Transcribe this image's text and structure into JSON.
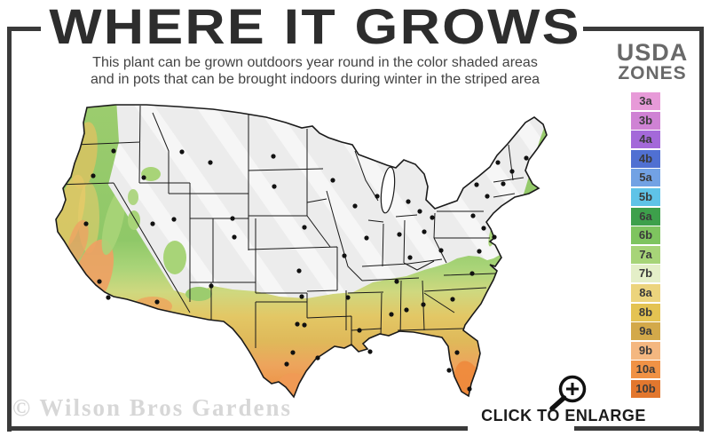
{
  "header": {
    "title": "WHERE IT GROWS",
    "subtitle_line1": "This plant can be grown outdoors year round in the color shaded areas",
    "subtitle_line2": "and in pots that can be brought indoors during winter in the striped area"
  },
  "legend": {
    "title_line1": "USDA",
    "title_line2": "ZONES",
    "zones": [
      {
        "label": "3a",
        "color": "#e79ad8"
      },
      {
        "label": "3b",
        "color": "#cf82d4"
      },
      {
        "label": "4a",
        "color": "#a469d9"
      },
      {
        "label": "4b",
        "color": "#5070d2"
      },
      {
        "label": "5a",
        "color": "#72a2e4"
      },
      {
        "label": "5b",
        "color": "#5fc3e7"
      },
      {
        "label": "6a",
        "color": "#3da04b"
      },
      {
        "label": "6b",
        "color": "#7ec45f"
      },
      {
        "label": "7a",
        "color": "#a7d478"
      },
      {
        "label": "7b",
        "color": "#e4efc8"
      },
      {
        "label": "8a",
        "color": "#ecd47d"
      },
      {
        "label": "8b",
        "color": "#e4c352"
      },
      {
        "label": "9a",
        "color": "#d3a94a"
      },
      {
        "label": "9b",
        "color": "#f4b780"
      },
      {
        "label": "10a",
        "color": "#f09245"
      },
      {
        "label": "10b",
        "color": "#e2772e"
      }
    ]
  },
  "map": {
    "striped_area_fill": "#ececec",
    "stripe_color": "#ffffff",
    "outline_color": "#1a1a1a",
    "warm_zone_colors": [
      "#9ccc6e",
      "#e3c765",
      "#ec8434"
    ]
  },
  "footer": {
    "watermark": "© Wilson Bros Gardens",
    "enlarge_label": "CLICK TO ENLARGE"
  }
}
